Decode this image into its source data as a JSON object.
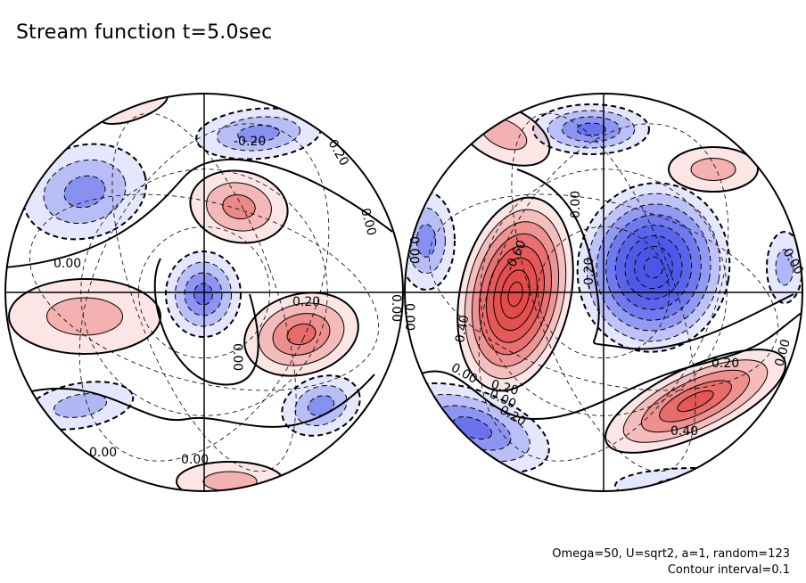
{
  "title": "Stream function t=5.0sec",
  "notes": {
    "params": "Omega=50, U=sqrt2, a=1, random=123",
    "interval": "Contour interval=0.1"
  },
  "colors": {
    "positive": "#e34a4a",
    "negative": "#4a55e8",
    "contour": "#000000",
    "background": "#ffffff"
  },
  "chart_data": {
    "type": "heatmap",
    "projection": "orthographic hemispheres (two views)",
    "contour_interval": 0.1,
    "color_scale": "red = positive, blue = negative",
    "panels": [
      {
        "name": "left-hemisphere",
        "contour_labels": [
          "-0.20",
          "0.20",
          "0.00",
          "0.00",
          "0.20",
          "0.00",
          "0.00",
          "0.00",
          "0.00"
        ]
      },
      {
        "name": "right-hemisphere",
        "contour_labels": [
          "0.00",
          "0.00",
          "-0.60",
          "0.40",
          "-0.20",
          "0.00",
          "0.00",
          "0.20",
          "0.00",
          "-0.20",
          "0.20",
          "0.40",
          "0.00",
          "0.00"
        ]
      }
    ]
  }
}
